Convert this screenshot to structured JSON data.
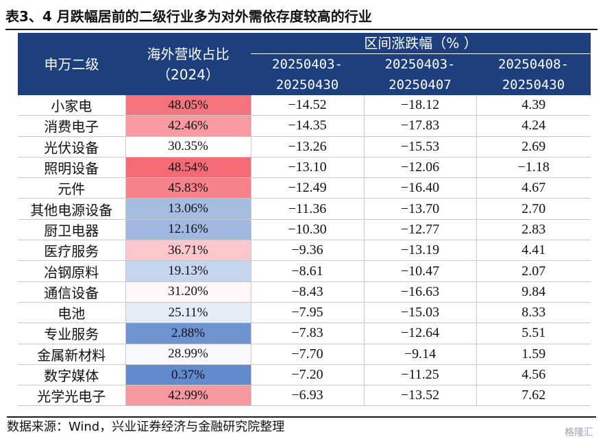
{
  "title": "表3、4 月跌幅居前的二级行业多为对外需依存度较高的行业",
  "header": {
    "industry": "申万二级",
    "share_line1": "海外营收占比",
    "share_line2": "（2024）",
    "group": "区间涨跌幅（% ）",
    "periods": [
      {
        "line1": "20250403-",
        "line2": "20250430"
      },
      {
        "line1": "20250403-",
        "line2": "20250407"
      },
      {
        "line1": "20250408-",
        "line2": "20250430"
      }
    ]
  },
  "rows": [
    {
      "name": "小家电",
      "share": "48.05%",
      "share_color": "#f5737d",
      "p1": "-14.52",
      "p2": "-18.12",
      "p3": "4.39"
    },
    {
      "name": "消费电子",
      "share": "42.46%",
      "share_color": "#f89aa1",
      "p1": "-14.35",
      "p2": "-17.83",
      "p3": "4.24"
    },
    {
      "name": "光伏设备",
      "share": "30.35%",
      "share_color": "#ffffff",
      "p1": "-13.26",
      "p2": "-15.53",
      "p3": "2.69"
    },
    {
      "name": "照明设备",
      "share": "48.54%",
      "share_color": "#f46b76",
      "p1": "-13.10",
      "p2": "-12.06",
      "p3": "-1.18"
    },
    {
      "name": "元件",
      "share": "45.83%",
      "share_color": "#f6838c",
      "p1": "-12.49",
      "p2": "-16.40",
      "p3": "4.67"
    },
    {
      "name": "其他电源设备",
      "share": "13.06%",
      "share_color": "#a6bde2",
      "p1": "-11.36",
      "p2": "-13.70",
      "p3": "2.70"
    },
    {
      "name": "厨卫电器",
      "share": "12.16%",
      "share_color": "#a1b9e0",
      "p1": "-10.30",
      "p2": "-12.77",
      "p3": "2.83"
    },
    {
      "name": "医疗服务",
      "share": "36.71%",
      "share_color": "#fbc7cc",
      "p1": "-9.36",
      "p2": "-13.19",
      "p3": "4.41"
    },
    {
      "name": "冶钢原料",
      "share": "19.13%",
      "share_color": "#c6d5ee",
      "p1": "-8.61",
      "p2": "-10.47",
      "p3": "2.07"
    },
    {
      "name": "通信设备",
      "share": "31.20%",
      "share_color": "#fef6f7",
      "p1": "-8.43",
      "p2": "-16.63",
      "p3": "9.84"
    },
    {
      "name": "电池",
      "share": "25.11%",
      "share_color": "#e4ecf8",
      "p1": "-7.95",
      "p2": "-15.03",
      "p3": "8.33"
    },
    {
      "name": "专业服务",
      "share": "2.88%",
      "share_color": "#6f93d1",
      "p1": "-7.83",
      "p2": "-12.64",
      "p3": "5.51"
    },
    {
      "name": "金属新材料",
      "share": "28.99%",
      "share_color": "#f7f9fd",
      "p1": "-7.70",
      "p2": "-9.14",
      "p3": "1.59"
    },
    {
      "name": "数字媒体",
      "share": "0.37%",
      "share_color": "#638acd",
      "p1": "-7.20",
      "p2": "-11.25",
      "p3": "4.56"
    },
    {
      "name": "光学光电子",
      "share": "42.99%",
      "share_color": "#f7979f",
      "p1": "-6.93",
      "p2": "-13.52",
      "p3": "7.62"
    }
  ],
  "source": "数据来源：Wind，兴业证券经济与金融研究院整理",
  "watermark": "格隆汇"
}
